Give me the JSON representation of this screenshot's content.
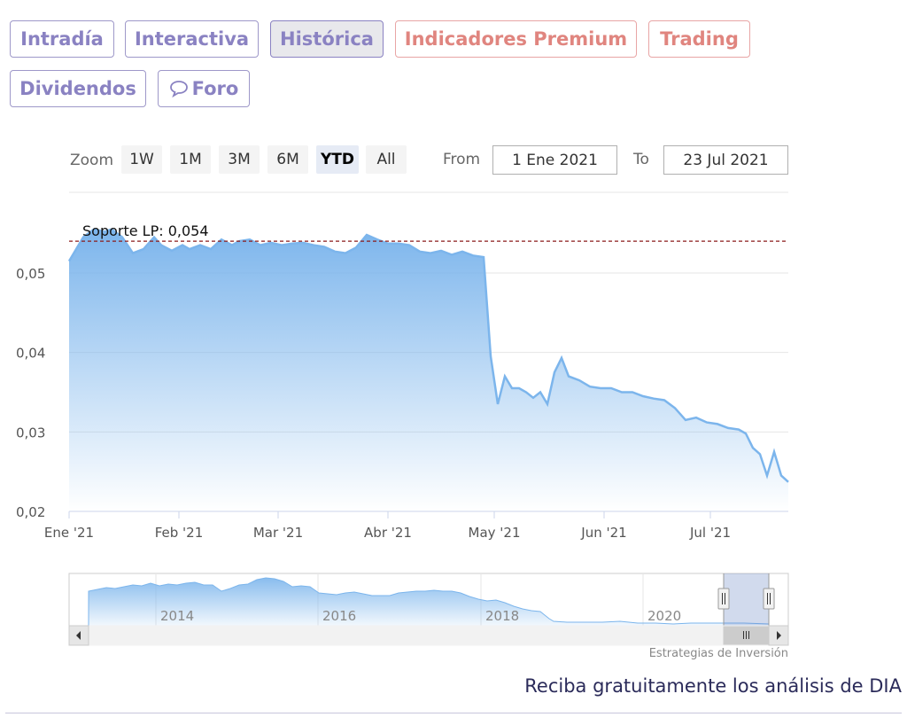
{
  "tabs": [
    {
      "label": "Intradía",
      "style": "normal"
    },
    {
      "label": "Interactiva",
      "style": "normal"
    },
    {
      "label": "Histórica",
      "style": "active"
    },
    {
      "label": "Indicadores Premium",
      "style": "red"
    },
    {
      "label": "Trading",
      "style": "red"
    },
    {
      "label": "Dividendos",
      "style": "normal"
    },
    {
      "label": "Foro",
      "style": "normal",
      "icon": "speech-bubble-icon"
    }
  ],
  "range_selector": {
    "zoom_label": "Zoom",
    "buttons": [
      "1W",
      "1M",
      "3M",
      "6M",
      "YTD",
      "All"
    ],
    "selected": "YTD",
    "from_label": "From",
    "from_value": "1 Ene 2021",
    "to_label": "To",
    "to_value": "23 Jul 2021"
  },
  "chart_data": {
    "type": "area",
    "title": "",
    "x_tick_labels": [
      "Ene '21",
      "Feb '21",
      "Mar '21",
      "Abr '21",
      "May '21",
      "Jun '21",
      "Jul '21"
    ],
    "y_tick_labels": [
      "0,02",
      "0,03",
      "0,04",
      "0,05"
    ],
    "ylim": [
      0.02,
      0.0555
    ],
    "xlim": [
      "2021-01-01",
      "2021-07-23"
    ],
    "grid": true,
    "color": "#7cb5ec",
    "plot_line": {
      "label": "Soporte LP: 0,054",
      "value": 0.054,
      "color": "#8b1a1a"
    },
    "series": [
      {
        "x": [
          "2021-01-01",
          "2021-01-03",
          "2021-01-05",
          "2021-01-08",
          "2021-01-11",
          "2021-01-13",
          "2021-01-16",
          "2021-01-19",
          "2021-01-22",
          "2021-01-25",
          "2021-01-27",
          "2021-01-30",
          "2021-02-02",
          "2021-02-04",
          "2021-02-07",
          "2021-02-10",
          "2021-02-13",
          "2021-02-16",
          "2021-02-18",
          "2021-02-21",
          "2021-02-24",
          "2021-02-27",
          "2021-03-02",
          "2021-03-05",
          "2021-03-08",
          "2021-03-11",
          "2021-03-14",
          "2021-03-17",
          "2021-03-20",
          "2021-03-23",
          "2021-03-26",
          "2021-03-29",
          "2021-04-01",
          "2021-04-04",
          "2021-04-07",
          "2021-04-10",
          "2021-04-13",
          "2021-04-16",
          "2021-04-19",
          "2021-04-22",
          "2021-04-25",
          "2021-04-28",
          "2021-04-30",
          "2021-05-02",
          "2021-05-04",
          "2021-05-06",
          "2021-05-08",
          "2021-05-10",
          "2021-05-12",
          "2021-05-14",
          "2021-05-16",
          "2021-05-18",
          "2021-05-20",
          "2021-05-22",
          "2021-05-25",
          "2021-05-28",
          "2021-05-31",
          "2021-06-03",
          "2021-06-06",
          "2021-06-09",
          "2021-06-12",
          "2021-06-15",
          "2021-06-18",
          "2021-06-21",
          "2021-06-24",
          "2021-06-27",
          "2021-06-30",
          "2021-07-03",
          "2021-07-06",
          "2021-07-09",
          "2021-07-11",
          "2021-07-13",
          "2021-07-15",
          "2021-07-17",
          "2021-07-19",
          "2021-07-21",
          "2021-07-23"
        ],
        "values": [
          0.0515,
          0.053,
          0.0545,
          0.0555,
          0.0552,
          0.0555,
          0.0545,
          0.0525,
          0.053,
          0.0545,
          0.0535,
          0.0528,
          0.0535,
          0.053,
          0.0535,
          0.053,
          0.0542,
          0.0535,
          0.054,
          0.0542,
          0.0535,
          0.0538,
          0.0535,
          0.0537,
          0.0538,
          0.0535,
          0.0533,
          0.0527,
          0.0525,
          0.0532,
          0.0548,
          0.0542,
          0.0537,
          0.0537,
          0.0535,
          0.0527,
          0.0525,
          0.0528,
          0.0523,
          0.0527,
          0.0522,
          0.052,
          0.0395,
          0.0335,
          0.037,
          0.0355,
          0.0355,
          0.035,
          0.0343,
          0.035,
          0.0335,
          0.0375,
          0.0393,
          0.037,
          0.0365,
          0.0357,
          0.0355,
          0.0355,
          0.035,
          0.035,
          0.0345,
          0.0342,
          0.034,
          0.033,
          0.0315,
          0.0318,
          0.0312,
          0.031,
          0.0305,
          0.0303,
          0.0298,
          0.028,
          0.0272,
          0.0245,
          0.0275,
          0.0245,
          0.0237
        ]
      }
    ],
    "navigator": {
      "tick_labels": [
        "2014",
        "2016",
        "2018",
        "2020"
      ]
    }
  },
  "credits": "Estrategias de Inversión",
  "cta_text": "Reciba gratuitamente los análisis de DIA"
}
